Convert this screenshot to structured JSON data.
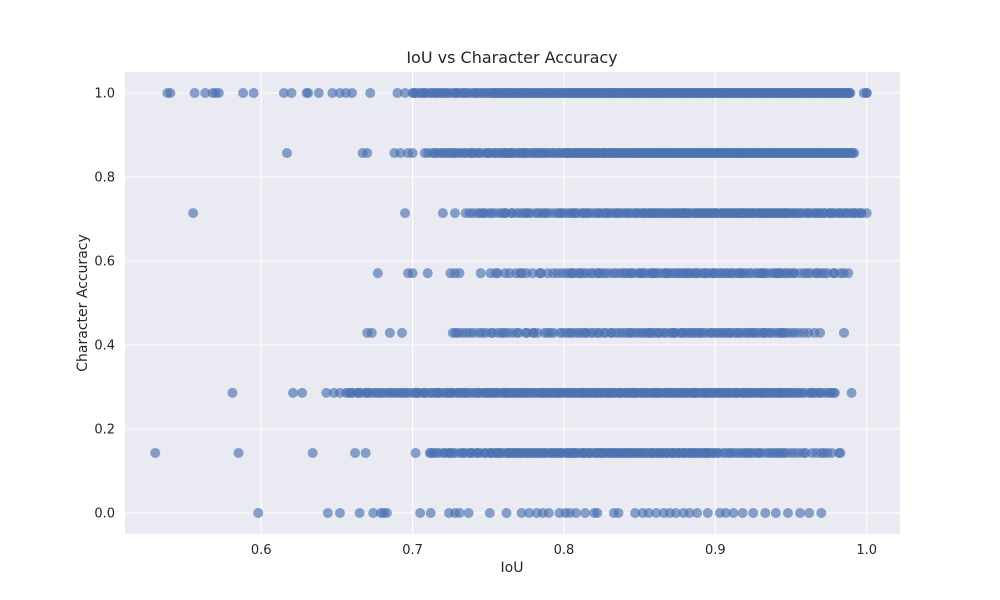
{
  "chart_data": {
    "type": "scatter",
    "title": "IoU vs Character Accuracy",
    "xlabel": "IoU",
    "ylabel": "Character Accuracy",
    "xlim": [
      0.51,
      1.022
    ],
    "ylim": [
      -0.05,
      1.05
    ],
    "xticks": [
      0.6,
      0.7,
      0.8,
      0.9,
      1.0
    ],
    "xtick_labels": [
      "0.6",
      "0.7",
      "0.8",
      "0.9",
      "1.0"
    ],
    "yticks": [
      0.0,
      0.2,
      0.4,
      0.6,
      0.8,
      1.0
    ],
    "ytick_labels": [
      "0.0",
      "0.2",
      "0.4",
      "0.6",
      "0.8",
      "1.0"
    ],
    "grid": true,
    "style": "seaborn",
    "colors": {
      "point": "#4c72b0",
      "plot_background": "#eaeaf2",
      "grid": "#ffffff",
      "text": "#262626"
    },
    "point_alpha": 0.65,
    "levels": [
      {
        "y": 1.0,
        "points": [
          0.538,
          0.54,
          0.556,
          0.563,
          0.568,
          0.57,
          0.572,
          0.588,
          0.595,
          0.615,
          0.62,
          0.63,
          0.631,
          0.638,
          0.647,
          0.652,
          0.656,
          0.66,
          0.672,
          0.69,
          0.695,
          0.7
        ],
        "ranges": [
          [
            0.7,
            0.75,
            34
          ],
          [
            0.75,
            0.8,
            48
          ],
          [
            0.8,
            0.85,
            60
          ],
          [
            0.85,
            0.9,
            62
          ],
          [
            0.9,
            0.95,
            62
          ],
          [
            0.95,
            0.99,
            50
          ]
        ],
        "extra": [
          0.998,
          1.0,
          1.0
        ]
      },
      {
        "y": 0.857,
        "points": [
          0.617,
          0.667,
          0.67,
          0.688,
          0.692,
          0.697,
          0.7,
          0.708
        ],
        "ranges": [
          [
            0.71,
            0.75,
            24
          ],
          [
            0.75,
            0.8,
            36
          ],
          [
            0.8,
            0.85,
            48
          ],
          [
            0.85,
            0.9,
            56
          ],
          [
            0.9,
            0.95,
            56
          ],
          [
            0.95,
            0.992,
            46
          ]
        ],
        "extra": []
      },
      {
        "y": 0.714,
        "points": [
          0.555,
          0.695,
          0.72,
          0.728
        ],
        "ranges": [
          [
            0.735,
            0.8,
            32
          ],
          [
            0.8,
            0.85,
            30
          ],
          [
            0.85,
            0.9,
            40
          ],
          [
            0.9,
            0.95,
            42
          ],
          [
            0.95,
            0.998,
            30
          ]
        ],
        "extra": [
          1.0
        ]
      },
      {
        "y": 0.571,
        "points": [
          0.677,
          0.697,
          0.7,
          0.71,
          0.725,
          0.728,
          0.731,
          0.745
        ],
        "ranges": [
          [
            0.75,
            0.8,
            16
          ],
          [
            0.8,
            0.85,
            24
          ],
          [
            0.85,
            0.9,
            30
          ],
          [
            0.9,
            0.95,
            28
          ],
          [
            0.95,
            0.988,
            16
          ]
        ],
        "extra": []
      },
      {
        "y": 0.429,
        "points": [
          0.67,
          0.673,
          0.685,
          0.693
        ],
        "ranges": [
          [
            0.725,
            0.8,
            30
          ],
          [
            0.8,
            0.85,
            24
          ],
          [
            0.85,
            0.9,
            30
          ],
          [
            0.9,
            0.95,
            30
          ],
          [
            0.95,
            0.97,
            6
          ]
        ],
        "extra": [
          0.985
        ]
      },
      {
        "y": 0.286,
        "points": [
          0.581,
          0.621,
          0.627,
          0.643,
          0.648,
          0.652
        ],
        "ranges": [
          [
            0.655,
            0.7,
            26
          ],
          [
            0.7,
            0.75,
            34
          ],
          [
            0.75,
            0.8,
            40
          ],
          [
            0.8,
            0.85,
            42
          ],
          [
            0.85,
            0.9,
            42
          ],
          [
            0.9,
            0.95,
            40
          ],
          [
            0.95,
            0.98,
            18
          ]
        ],
        "extra": [
          0.99
        ]
      },
      {
        "y": 0.143,
        "points": [
          0.53,
          0.585,
          0.634,
          0.662,
          0.669,
          0.702
        ],
        "ranges": [
          [
            0.71,
            0.75,
            22
          ],
          [
            0.75,
            0.8,
            38
          ],
          [
            0.8,
            0.85,
            40
          ],
          [
            0.85,
            0.9,
            40
          ],
          [
            0.9,
            0.95,
            26
          ],
          [
            0.95,
            0.985,
            12
          ]
        ],
        "extra": []
      },
      {
        "y": 0.0,
        "points": [
          0.598,
          0.644,
          0.652,
          0.665,
          0.674,
          0.679,
          0.681,
          0.683,
          0.705,
          0.712,
          0.724,
          0.728,
          0.731,
          0.737,
          0.751,
          0.762,
          0.772,
          0.777,
          0.782,
          0.786,
          0.79,
          0.797,
          0.801,
          0.804,
          0.808,
          0.814,
          0.82,
          0.822,
          0.833,
          0.836,
          0.847,
          0.852,
          0.856,
          0.861,
          0.866,
          0.87,
          0.874,
          0.879,
          0.883,
          0.888,
          0.895,
          0.903,
          0.907,
          0.912,
          0.918,
          0.925,
          0.933,
          0.94,
          0.948,
          0.956,
          0.962,
          0.97
        ],
        "ranges": [],
        "extra": []
      }
    ]
  }
}
